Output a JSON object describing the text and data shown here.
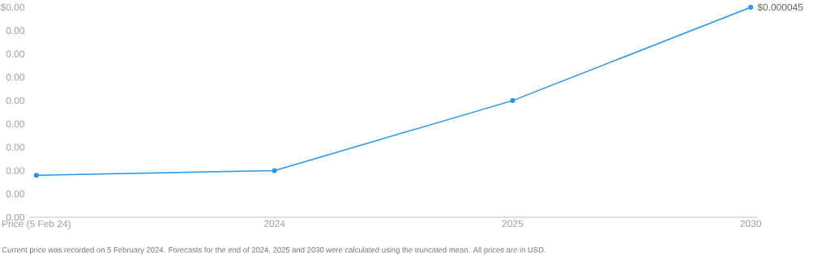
{
  "chart_data": {
    "type": "line",
    "categories": [
      "Price (5 Feb 24)",
      "2024",
      "2025",
      "2030"
    ],
    "series": [
      {
        "color": "#2196f3",
        "values": [
          9e-06,
          1e-05,
          2.5e-05,
          4.5e-05
        ],
        "value_labels": [
          null,
          null,
          null,
          "$0.000045"
        ]
      }
    ],
    "ylim": [
      0,
      4.5e-05
    ],
    "yticks": [
      {
        "value": 0,
        "label": "0.00"
      },
      {
        "value": 5e-06,
        "label": "0.00"
      },
      {
        "value": 1e-05,
        "label": "0.00"
      },
      {
        "value": 1.5e-05,
        "label": "0.00"
      },
      {
        "value": 2e-05,
        "label": "0.00"
      },
      {
        "value": 2.5e-05,
        "label": "0.00"
      },
      {
        "value": 3e-05,
        "label": "0.00"
      },
      {
        "value": 3.5e-05,
        "label": "0.00"
      },
      {
        "value": 4e-05,
        "label": "0.00"
      },
      {
        "value": 4.5e-05,
        "label": "$0.00"
      }
    ],
    "marker": "circle",
    "line_style": "solid",
    "annotations": [
      "Current price was recorded on 5 February 2024. Forecasts for the end of 2024, 2025 and 2030 were calculated using the truncated mean. All prices are in USD."
    ]
  }
}
